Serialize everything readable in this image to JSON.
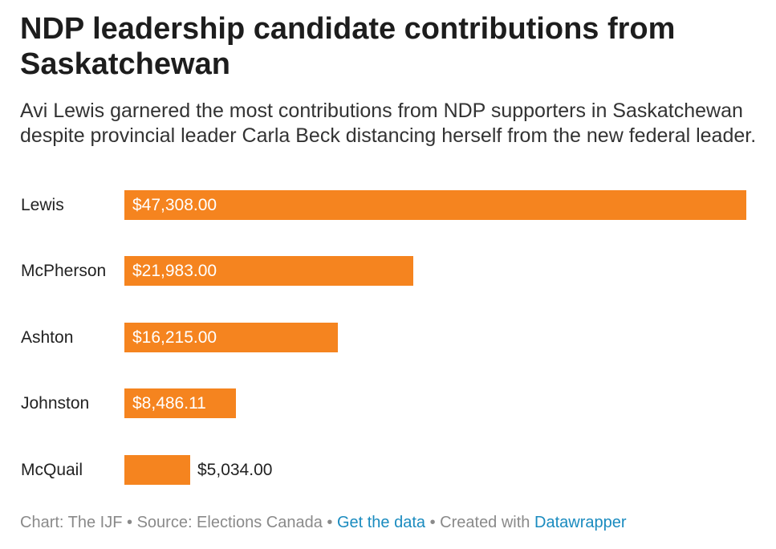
{
  "header": {
    "title": "NDP leadership candidate contributions from Saskatchewan",
    "subtitle": "Avi Lewis garnered the most contributions from NDP supporters in Saskatchewan despite provincial leader Carla Beck distancing herself from the new federal leader."
  },
  "chart_data": {
    "type": "bar",
    "orientation": "horizontal",
    "categories": [
      "Lewis",
      "McPherson",
      "Ashton",
      "Johnston",
      "McQuail"
    ],
    "values": [
      47308.0,
      21983.0,
      16215.0,
      8486.11,
      5034.0
    ],
    "value_labels": [
      "$47,308.00",
      "$21,983.00",
      "$16,215.00",
      "$8,486.11",
      "$5,034.00"
    ],
    "bar_color": "#f5841f",
    "xlim": [
      0,
      47308
    ],
    "grid": false,
    "legend": "none"
  },
  "footer": {
    "credit": "Chart: The IJF",
    "source": "Source: Elections Canada",
    "separator": " • ",
    "data_link": "Get the data",
    "created_with_prefix": "Created with",
    "tool_link": "Datawrapper"
  }
}
